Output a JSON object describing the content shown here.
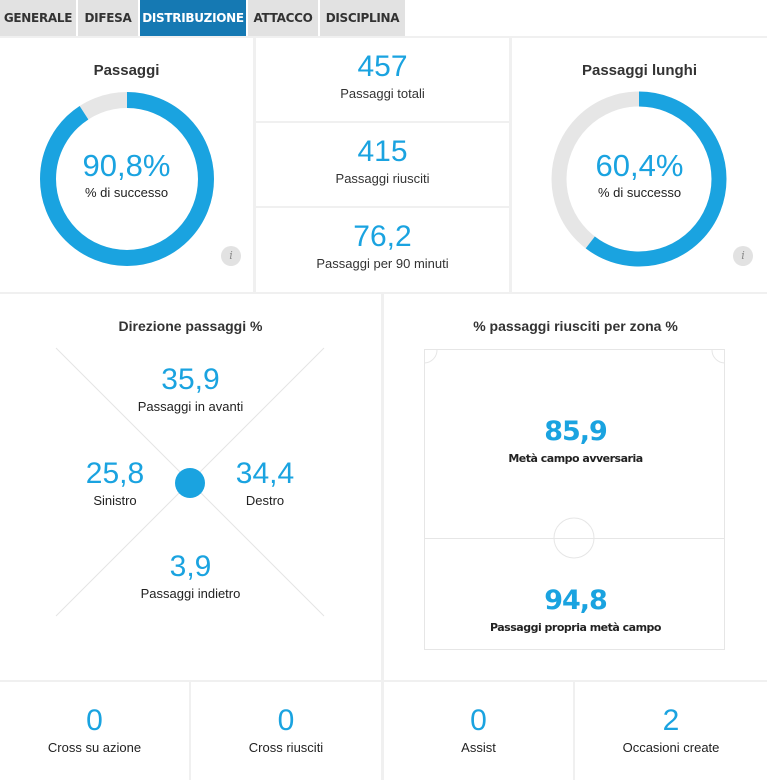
{
  "tabs": [
    {
      "label": "GENERALE",
      "active": false
    },
    {
      "label": "DIFESA",
      "active": false
    },
    {
      "label": "DISTRIBUZIONE",
      "active": true
    },
    {
      "label": "ATTACCO",
      "active": false
    },
    {
      "label": "DISCIPLINA",
      "active": false
    }
  ],
  "passaggi": {
    "title": "Passaggi",
    "value": "90,8%",
    "value_fraction": 0.908,
    "label": "% di successo",
    "info": "i"
  },
  "totals": [
    {
      "value": "457",
      "label": "Passaggi totali"
    },
    {
      "value": "415",
      "label": "Passaggi riusciti"
    },
    {
      "value": "76,2",
      "label": "Passaggi per 90 minuti"
    }
  ],
  "lunghi": {
    "title": "Passaggi lunghi",
    "value": "60,4%",
    "value_fraction": 0.604,
    "label": "% di successo",
    "info": "i"
  },
  "direzione": {
    "title": "Direzione passaggi %",
    "avanti": {
      "value": "35,9",
      "label": "Passaggi in avanti"
    },
    "sinistro": {
      "value": "25,8",
      "label": "Sinistro"
    },
    "destro": {
      "value": "34,4",
      "label": "Destro"
    },
    "indietro": {
      "value": "3,9",
      "label": "Passaggi indietro"
    }
  },
  "zona": {
    "title": "% passaggi riusciti per zona %",
    "avversaria": {
      "value": "85,9",
      "label": "Metà campo avversaria"
    },
    "propria": {
      "value": "94,8",
      "label": "Passaggi propria metà campo"
    }
  },
  "bottom": [
    {
      "value": "0",
      "label": "Cross su azione"
    },
    {
      "value": "0",
      "label": "Cross riusciti"
    },
    {
      "value": "0",
      "label": "Assist"
    },
    {
      "value": "2",
      "label": "Occasioni create"
    }
  ],
  "colors": {
    "accent": "#1aa3e0",
    "ring_bg": "#e6e6e6",
    "tab_active": "#1579b3"
  }
}
